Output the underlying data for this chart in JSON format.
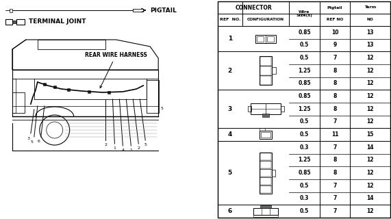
{
  "bg_color": "#ffffff",
  "labels": {
    "pigtail": "PIGTAIL",
    "terminal_joint": "TERMINAL JOINT",
    "rear_wire_harness": "REAR WIRE HARNESS"
  },
  "table": {
    "rows": [
      {
        "ref": "1",
        "wire": [
          "0.85",
          "0.5"
        ],
        "pigtail": [
          "10",
          "9"
        ],
        "term": [
          "13",
          "13"
        ]
      },
      {
        "ref": "2",
        "wire": [
          "0.5",
          "1.25",
          "0.85"
        ],
        "pigtail": [
          "7",
          "8",
          "8"
        ],
        "term": [
          "12",
          "12",
          "12"
        ]
      },
      {
        "ref": "3",
        "wire": [
          "0.85",
          "1.25",
          "0.5"
        ],
        "pigtail": [
          "8",
          "8",
          "7"
        ],
        "term": [
          "12",
          "12",
          "12"
        ]
      },
      {
        "ref": "4",
        "wire": [
          "0.5"
        ],
        "pigtail": [
          "11"
        ],
        "term": [
          "15"
        ]
      },
      {
        "ref": "5",
        "wire": [
          "0.3",
          "1.25",
          "0.85",
          "0.5",
          "0.3"
        ],
        "pigtail": [
          "7",
          "8",
          "8",
          "7",
          "7"
        ],
        "term": [
          "14",
          "12",
          "12",
          "12",
          "14"
        ]
      },
      {
        "ref": "6",
        "wire": [
          "0.5"
        ],
        "pigtail": [
          "7"
        ],
        "term": [
          "12"
        ]
      }
    ]
  }
}
